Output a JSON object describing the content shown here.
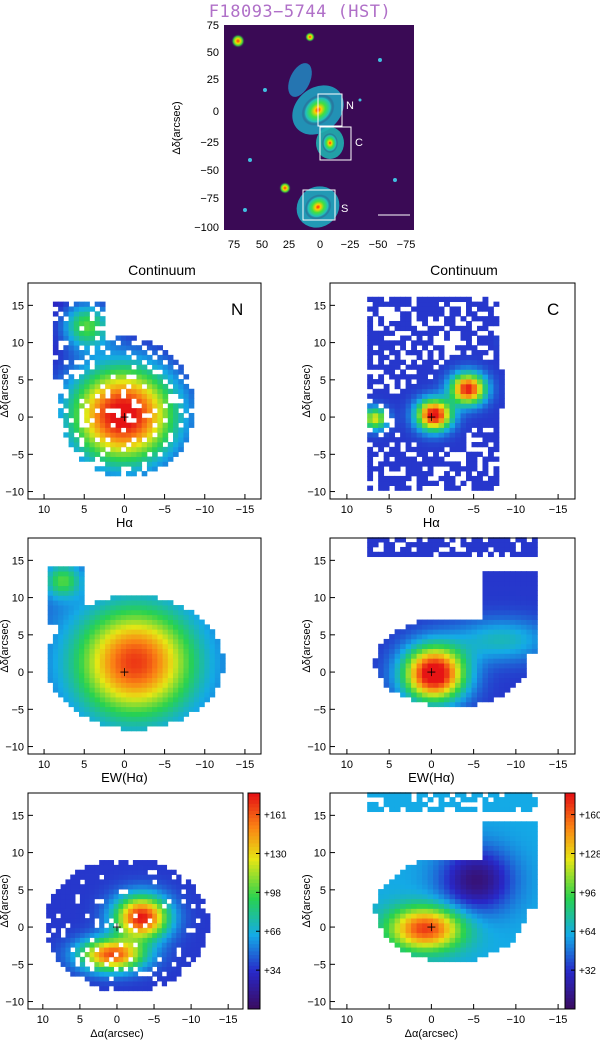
{
  "figure": {
    "hst": {
      "title": "F18093−5744 (HST)",
      "ylabel": "Δδ(arcsec)",
      "yticks": [
        "75",
        "50",
        "25",
        "0",
        "−25",
        "−50",
        "−75",
        "−100"
      ],
      "xticks": [
        "75",
        "50",
        "25",
        "0",
        "−25",
        "−50",
        "−75"
      ],
      "box_labels": [
        "N",
        "C",
        "S"
      ]
    },
    "column_titles": [
      "Continuum",
      "Continuum"
    ],
    "panel_letters": [
      "N",
      "C"
    ],
    "row_labels": [
      "Hα",
      "Hα",
      "EW(Hα)",
      "EW(Hα)"
    ],
    "ylabel": "Δδ(arcsec)",
    "xlabel": "Δα(arcsec)",
    "map_xticks": [
      "10",
      "5",
      "0",
      "−5",
      "−10",
      "−15"
    ],
    "map_yticks": [
      "15",
      "10",
      "5",
      "0",
      "−5",
      "−10"
    ],
    "colorbar_left": [
      "+161",
      "+130",
      "+98",
      "+66",
      "+34"
    ],
    "colorbar_right": [
      "+160",
      "+128",
      "+96",
      "+64",
      "+32"
    ]
  },
  "colors": {
    "background_dark": "#3a0a55",
    "contour_green": "#40d040",
    "contour_red": "#e03020",
    "hst_title": "#b070c8"
  }
}
